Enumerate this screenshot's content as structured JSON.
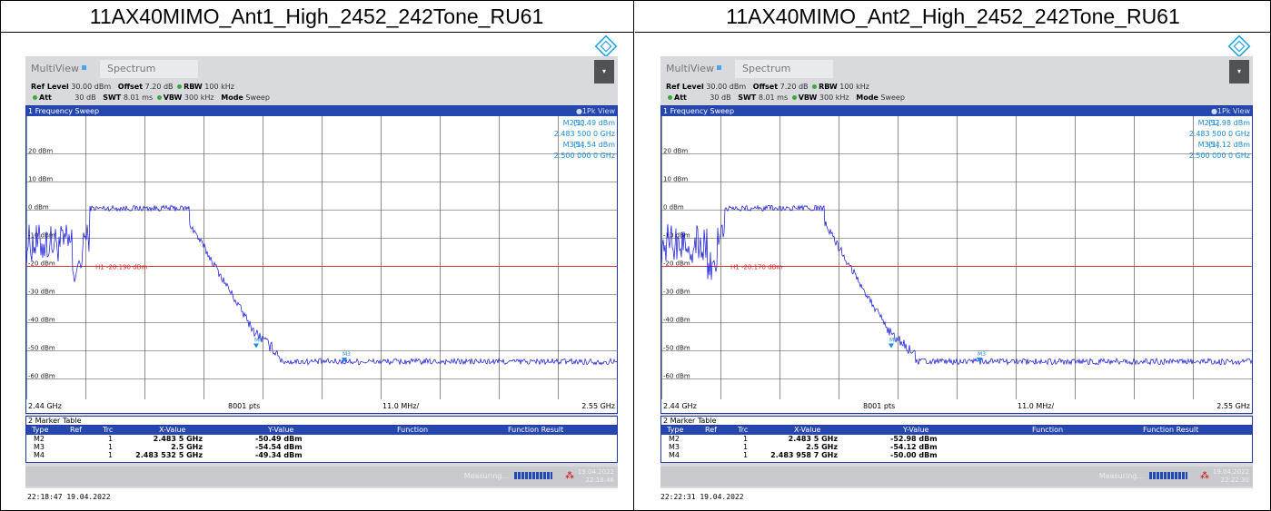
{
  "panels": [
    {
      "title": "11AX40MIMO_Ant1_High_2452_242Tone_RU61",
      "multiview": "MultiView",
      "tab": "Spectrum",
      "ref_level": "Ref Level",
      "ref_level_val": "30.00 dBm",
      "offset": "Offset",
      "offset_val": "7.20 dB",
      "rbw": "RBW",
      "rbw_val": "100 kHz",
      "att": "Att",
      "att_val": "30 dB",
      "swt": "SWT",
      "swt_val": "8.01 ms",
      "vbw": "VBW",
      "vbw_val": "300 kHz",
      "mode": "Mode",
      "mode_val": "Sweep",
      "sweep_title": "1 Frequency Sweep",
      "view": "●1Pk View",
      "m2_label": "M2[1]",
      "m2_val": "-50.49 dBm",
      "m2_freq": "2.483 500 0 GHz",
      "m3_label": "M3[1]",
      "m3_val": "-54.54 dBm",
      "m3_freq": "2.500 000 0 GHz",
      "h1": "H1 -20.190 dBm",
      "yticks": [
        "20 dBm",
        "10 dBm",
        "0 dBm",
        "-10 dBm",
        "-20 dBm",
        "-30 dBm",
        "-40 dBm",
        "-50 dBm",
        "-60 dBm"
      ],
      "start": "2.44 GHz",
      "pts": "8001 pts",
      "span": "11.0 MHz/",
      "stop": "2.55 GHz",
      "table_title": "2 Marker Table",
      "cols": [
        "Type",
        "Ref",
        "Trc",
        "X-Value",
        "Y-Value",
        "Function",
        "Function Result"
      ],
      "rows": [
        {
          "type": "M2",
          "trc": "1",
          "x": "2.483 5 GHz",
          "y": "-50.49 dBm"
        },
        {
          "type": "M3",
          "trc": "1",
          "x": "2.5 GHz",
          "y": "-54.54 dBm"
        },
        {
          "type": "M4",
          "trc": "1",
          "x": "2.483 532 5 GHz",
          "y": "-49.34 dBm"
        }
      ],
      "measuring": "Measuring...",
      "date": "19.04.2022",
      "time": "22:18:46",
      "stamp": "22:18:47  19.04.2022",
      "m4": "M4",
      "m3": "M3"
    },
    {
      "title": "11AX40MIMO_Ant2_High_2452_242Tone_RU61",
      "multiview": "MultiView",
      "tab": "Spectrum",
      "ref_level": "Ref Level",
      "ref_level_val": "30.00 dBm",
      "offset": "Offset",
      "offset_val": "7.20 dB",
      "rbw": "RBW",
      "rbw_val": "100 kHz",
      "att": "Att",
      "att_val": "30 dB",
      "swt": "SWT",
      "swt_val": "8.01 ms",
      "vbw": "VBW",
      "vbw_val": "300 kHz",
      "mode": "Mode",
      "mode_val": "Sweep",
      "sweep_title": "1 Frequency Sweep",
      "view": "●1Pk View",
      "m2_label": "M2[1]",
      "m2_val": "-52.98 dBm",
      "m2_freq": "2.483 500 0 GHz",
      "m3_label": "M3[1]",
      "m3_val": "-54.12 dBm",
      "m3_freq": "2.500 000 0 GHz",
      "h1": "H1 -20.170 dBm",
      "yticks": [
        "20 dBm",
        "10 dBm",
        "0 dBm",
        "-10 dBm",
        "-20 dBm",
        "-30 dBm",
        "-40 dBm",
        "-50 dBm",
        "-60 dBm"
      ],
      "start": "2.44 GHz",
      "pts": "8001 pts",
      "span": "11.0 MHz/",
      "stop": "2.55 GHz",
      "table_title": "2 Marker Table",
      "cols": [
        "Type",
        "Ref",
        "Trc",
        "X-Value",
        "Y-Value",
        "Function",
        "Function Result"
      ],
      "rows": [
        {
          "type": "M2",
          "trc": "1",
          "x": "2.483 5 GHz",
          "y": "-52.98 dBm"
        },
        {
          "type": "M3",
          "trc": "1",
          "x": "2.5 GHz",
          "y": "-54.12 dBm"
        },
        {
          "type": "M4",
          "trc": "1",
          "x": "2.483 958 7 GHz",
          "y": "-50.00 dBm"
        }
      ],
      "measuring": "Measuring...",
      "date": "19.04.2022",
      "time": "22:22:30",
      "stamp": "22:22:31  19.04.2022",
      "m4": "M4",
      "m3": "M3"
    }
  ],
  "colors": {
    "trace": "#1010d8",
    "threshold": "#e02020",
    "header": "#2646b0",
    "marker": "#1b8cd8"
  }
}
